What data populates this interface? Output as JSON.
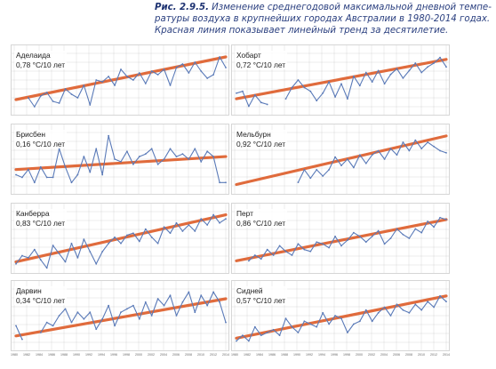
{
  "caption": {
    "fig": "Рис. 2.9.5.",
    "line1": " Изменение среднегодовой максимальной дневной темпе-",
    "line2": "ратуры воздуха в крупнейших городах Австралии в 1980-2014 годах.",
    "line3": "Красная линия показывает линейный тренд за десятилетие."
  },
  "colors": {
    "series": "#5a7ab8",
    "trend": "#e06b3c",
    "grid": "#cfcfcf"
  },
  "chart_data": [
    {
      "type": "line",
      "city": "Аделаида",
      "trend_label": "0,78 °С/10 лет",
      "x": [
        1980,
        1981,
        1982,
        1983,
        1984,
        1985,
        1986,
        1987,
        1988,
        1989,
        1990,
        1991,
        1992,
        1993,
        1994,
        1995,
        1996,
        1997,
        1998,
        1999,
        2000,
        2001,
        2002,
        2003,
        2004,
        2005,
        2006,
        2007,
        2008,
        2009,
        2010,
        2011,
        2012,
        2013,
        2014
      ],
      "values": [
        null,
        null,
        21.3,
        20.8,
        21.4,
        21.6,
        21.1,
        21.0,
        21.8,
        21.5,
        21.3,
        22.0,
        20.9,
        22.3,
        22.2,
        22.5,
        22.0,
        22.9,
        22.5,
        22.3,
        22.7,
        22.1,
        22.8,
        22.6,
        22.9,
        22.0,
        23.0,
        23.2,
        22.7,
        23.3,
        22.8,
        22.4,
        22.6,
        23.6,
        23.0
      ],
      "trend": [
        21.2,
        23.6
      ],
      "ylim": [
        20.4,
        24.2
      ]
    },
    {
      "type": "line",
      "city": "Хобарт",
      "trend_label": "0,72 °С/10 лет",
      "x": [
        1980,
        1981,
        1982,
        1983,
        1984,
        1985,
        1986,
        1987,
        1988,
        1989,
        1990,
        1991,
        1992,
        1993,
        1994,
        1995,
        1996,
        1997,
        1998,
        1999,
        2000,
        2001,
        2002,
        2003,
        2004,
        2005,
        2006,
        2007,
        2008,
        2009,
        2010,
        2011,
        2012,
        2013,
        2014
      ],
      "values": [
        16.8,
        16.9,
        16.1,
        16.7,
        16.3,
        16.2,
        null,
        null,
        16.5,
        17.1,
        17.5,
        17.1,
        16.9,
        16.4,
        16.8,
        17.4,
        16.6,
        17.3,
        16.5,
        17.7,
        17.2,
        17.9,
        17.4,
        18.0,
        17.3,
        17.8,
        18.1,
        17.6,
        18.0,
        18.4,
        17.9,
        18.2,
        18.4,
        18.7,
        18.2
      ],
      "trend": [
        16.5,
        18.6
      ],
      "ylim": [
        15.7,
        19.3
      ]
    },
    {
      "type": "line",
      "city": "Брисбен",
      "trend_label": "0,16 °С/10 лет",
      "x": [
        1980,
        1981,
        1982,
        1983,
        1984,
        1985,
        1986,
        1987,
        1988,
        1989,
        1990,
        1991,
        1992,
        1993,
        1994,
        1995,
        1996,
        1997,
        1998,
        1999,
        2000,
        2001,
        2002,
        2003,
        2004,
        2005,
        2006,
        2007,
        2008,
        2009,
        2010,
        2011,
        2012,
        2013,
        2014
      ],
      "values": [
        25.9,
        25.8,
        26.1,
        25.6,
        26.2,
        25.8,
        25.8,
        26.9,
        26.2,
        25.6,
        25.9,
        26.6,
        26.0,
        26.9,
        25.9,
        27.4,
        26.5,
        26.4,
        26.8,
        26.3,
        26.6,
        26.7,
        26.9,
        26.3,
        26.5,
        26.9,
        26.6,
        26.7,
        26.5,
        26.9,
        26.4,
        26.8,
        26.6,
        25.6,
        25.6
      ],
      "trend": [
        26.1,
        26.6
      ],
      "ylim": [
        25.2,
        27.8
      ]
    },
    {
      "type": "line",
      "city": "Мельбурн",
      "trend_label": "0,92 °С/10 лет",
      "x": [
        1980,
        1981,
        1982,
        1983,
        1984,
        1985,
        1986,
        1987,
        1988,
        1989,
        1990,
        1991,
        1992,
        1993,
        1994,
        1995,
        1996,
        1997,
        1998,
        1999,
        2000,
        2001,
        2002,
        2003,
        2004,
        2005,
        2006,
        2007,
        2008,
        2009,
        2010,
        2011,
        2012,
        2013,
        2014
      ],
      "values": [
        null,
        null,
        null,
        null,
        null,
        null,
        null,
        null,
        null,
        null,
        19.3,
        19.9,
        19.5,
        19.9,
        19.6,
        19.9,
        20.5,
        20.1,
        20.4,
        20.0,
        20.6,
        20.2,
        20.6,
        20.8,
        20.4,
        20.9,
        20.6,
        21.2,
        20.8,
        21.3,
        20.9,
        21.2,
        21.0,
        20.8,
        20.7
      ],
      "trend": [
        19.2,
        21.5
      ],
      "ylim": [
        18.8,
        22.0
      ]
    },
    {
      "type": "line",
      "city": "Канберра",
      "trend_label": "0,83 °С/10 лет",
      "x": [
        1980,
        1981,
        1982,
        1983,
        1984,
        1985,
        1986,
        1987,
        1988,
        1989,
        1990,
        1991,
        1992,
        1993,
        1994,
        1995,
        1996,
        1997,
        1998,
        1999,
        2000,
        2001,
        2002,
        2003,
        2004,
        2005,
        2006,
        2007,
        2008,
        2009,
        2010,
        2011,
        2012,
        2013,
        2014
      ],
      "values": [
        19.2,
        19.6,
        19.5,
        19.9,
        19.4,
        19.0,
        20.1,
        19.7,
        19.3,
        20.2,
        19.5,
        20.4,
        19.8,
        19.2,
        19.8,
        20.2,
        20.5,
        20.2,
        20.6,
        20.7,
        20.3,
        20.9,
        20.5,
        20.2,
        21.0,
        20.7,
        21.2,
        20.8,
        21.1,
        20.8,
        21.4,
        21.1,
        21.6,
        21.2,
        21.4
      ],
      "trend": [
        19.3,
        21.6
      ],
      "ylim": [
        18.8,
        22.1
      ]
    },
    {
      "type": "line",
      "city": "Перт",
      "trend_label": "0,86 °С/10 лет",
      "x": [
        1980,
        1981,
        1982,
        1983,
        1984,
        1985,
        1986,
        1987,
        1988,
        1989,
        1990,
        1991,
        1992,
        1993,
        1994,
        1995,
        1996,
        1997,
        1998,
        1999,
        2000,
        2001,
        2002,
        2003,
        2004,
        2005,
        2006,
        2007,
        2008,
        2009,
        2010,
        2011,
        2012,
        2013,
        2014
      ],
      "values": [
        null,
        null,
        23.6,
        23.9,
        23.7,
        24.2,
        23.9,
        24.4,
        24.1,
        23.9,
        24.5,
        24.2,
        24.1,
        24.6,
        24.5,
        24.3,
        24.9,
        24.4,
        24.7,
        25.1,
        24.9,
        24.6,
        24.9,
        25.2,
        24.5,
        24.8,
        25.3,
        25.0,
        24.8,
        25.3,
        25.1,
        25.7,
        25.4,
        25.9,
        25.8
      ],
      "trend": [
        23.6,
        25.8
      ],
      "ylim": [
        23.0,
        26.6
      ]
    },
    {
      "type": "line",
      "city": "Дарвин",
      "trend_label": "0,34 °С/10 лет",
      "x": [
        1980,
        1981,
        1982,
        1983,
        1984,
        1985,
        1986,
        1987,
        1988,
        1989,
        1990,
        1991,
        1992,
        1993,
        1994,
        1995,
        1996,
        1997,
        1998,
        1999,
        2000,
        2001,
        2002,
        2003,
        2004,
        2005,
        2006,
        2007,
        2008,
        2009,
        2010,
        2011,
        2012,
        2013,
        2014
      ],
      "values": [
        32.3,
        31.9,
        null,
        null,
        32.1,
        32.4,
        32.3,
        32.6,
        32.8,
        32.4,
        32.7,
        32.5,
        32.7,
        32.2,
        32.5,
        32.9,
        32.3,
        32.7,
        32.8,
        32.9,
        32.5,
        33.0,
        32.6,
        33.1,
        32.9,
        33.2,
        32.6,
        33.0,
        33.3,
        32.7,
        33.2,
        32.9,
        33.3,
        33.0,
        32.4
      ],
      "trend": [
        32.0,
        33.1
      ],
      "ylim": [
        31.6,
        33.6
      ]
    },
    {
      "type": "line",
      "city": "Сидней",
      "trend_label": "0,57 °С/10 лет",
      "x": [
        1980,
        1981,
        1982,
        1983,
        1984,
        1985,
        1986,
        1987,
        1988,
        1989,
        1990,
        1991,
        1992,
        1993,
        1994,
        1995,
        1996,
        1997,
        1998,
        1999,
        2000,
        2001,
        2002,
        2003,
        2004,
        2005,
        2006,
        2007,
        2008,
        2009,
        2010,
        2011,
        2012,
        2013,
        2014
      ],
      "values": [
        21.4,
        21.6,
        21.4,
        21.9,
        21.6,
        21.7,
        21.8,
        21.6,
        22.2,
        21.9,
        21.7,
        22.1,
        22.0,
        21.9,
        22.4,
        22.0,
        22.3,
        22.2,
        21.7,
        22.0,
        22.1,
        22.5,
        22.1,
        22.4,
        22.6,
        22.3,
        22.7,
        22.5,
        22.4,
        22.7,
        22.5,
        22.8,
        22.6,
        23.0,
        22.8
      ],
      "trend": [
        21.5,
        23.0
      ],
      "ylim": [
        21.1,
        23.5
      ]
    }
  ],
  "x_ticks": [
    "1980",
    "1982",
    "1984",
    "1986",
    "1988",
    "1990",
    "1992",
    "1994",
    "1996",
    "1998",
    "2000",
    "2002",
    "2004",
    "2006",
    "2008",
    "2010",
    "2012",
    "2014"
  ]
}
